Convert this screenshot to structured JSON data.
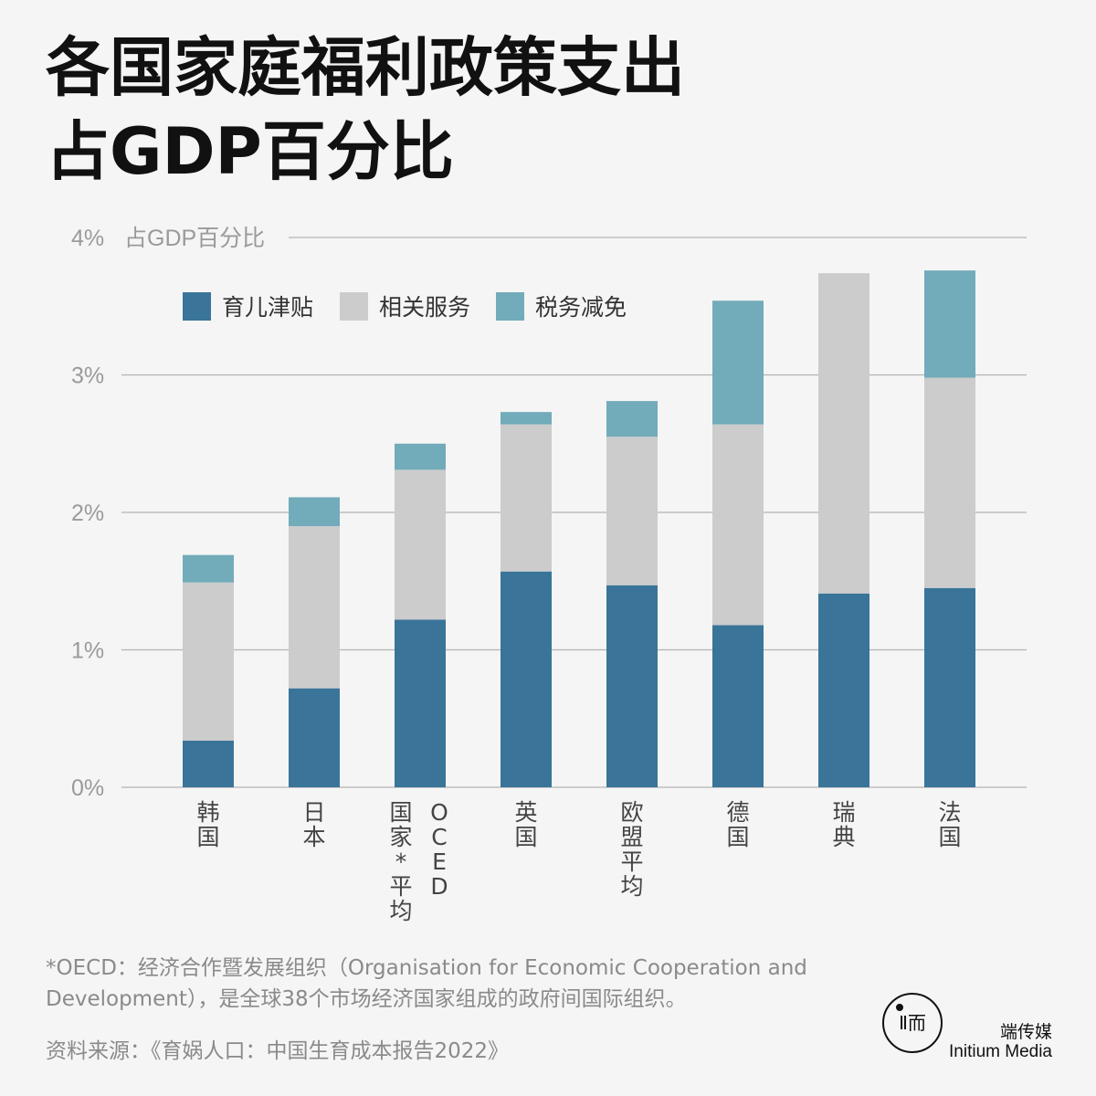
{
  "title": {
    "line1": "各国家庭福利政策支出",
    "line2": "占GDP百分比"
  },
  "chart_data": {
    "type": "bar",
    "stacked": true,
    "ylabel": "占GDP百分比",
    "ylim": [
      0,
      4
    ],
    "yticks": [
      "0%",
      "1%",
      "2%",
      "3%",
      "4%"
    ],
    "grid": true,
    "legend_position": "top-left",
    "categories": [
      "韩国",
      "日本",
      "OCED国家*平均",
      "英国",
      "欧盟平均",
      "德国",
      "瑞典",
      "法国"
    ],
    "category_labels": [
      {
        "cols": [
          [
            "韩",
            "国"
          ]
        ]
      },
      {
        "cols": [
          [
            "日",
            "本"
          ]
        ]
      },
      {
        "cols": [
          [
            "国",
            "家",
            "*",
            "平",
            "均"
          ],
          [
            "O",
            "C",
            "E",
            "D"
          ]
        ]
      },
      {
        "cols": [
          [
            "英",
            "国"
          ]
        ]
      },
      {
        "cols": [
          [
            "欧",
            "盟",
            "平",
            "均"
          ]
        ]
      },
      {
        "cols": [
          [
            "德",
            "国"
          ]
        ]
      },
      {
        "cols": [
          [
            "瑞",
            "典"
          ]
        ]
      },
      {
        "cols": [
          [
            "法",
            "国"
          ]
        ]
      }
    ],
    "series": [
      {
        "name": "育儿津贴",
        "color": "#3a7499",
        "values": [
          0.34,
          0.72,
          1.22,
          1.57,
          1.47,
          1.18,
          1.41,
          1.45
        ]
      },
      {
        "name": "相关服务",
        "color": "#cccccc",
        "values": [
          1.15,
          1.18,
          1.09,
          1.07,
          1.08,
          1.46,
          2.33,
          1.53
        ]
      },
      {
        "name": "税务减免",
        "color": "#72abba",
        "values": [
          0.2,
          0.21,
          0.19,
          0.09,
          0.26,
          0.9,
          0.0,
          0.78
        ]
      }
    ]
  },
  "footnote": "*OECD：经济合作暨发展组织（Organisation for Economic Cooperation and Development），是全球38个市场经济国家组成的政府间国际组织。",
  "source": "资料来源：《育娲人口：中国生育成本报告2022》",
  "logo": {
    "mark_text": "Ⅱ而",
    "name_cn": "端传媒",
    "name_en": "Initium Media"
  }
}
